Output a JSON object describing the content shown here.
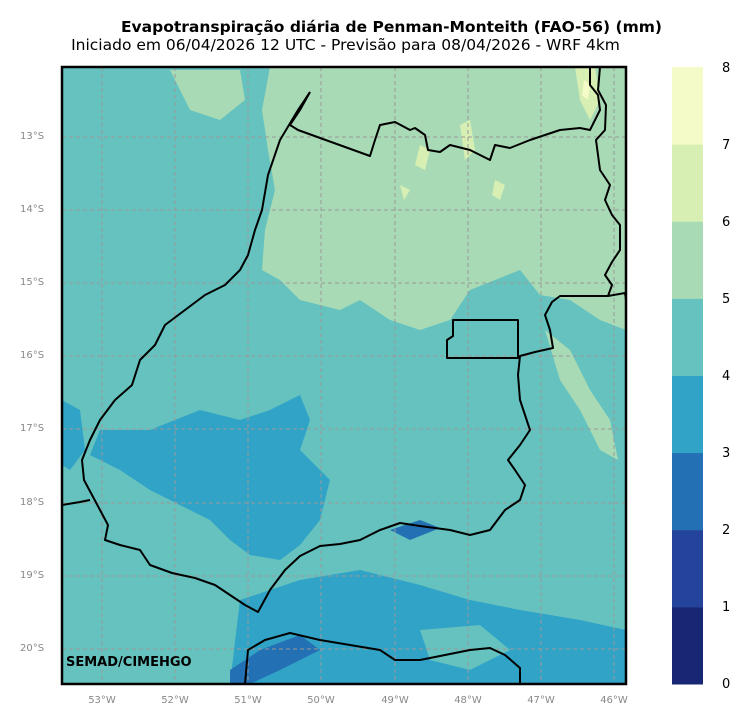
{
  "title": "Evapotranspiração diária de Penman-Monteith (FAO-56) (mm)",
  "subtitle": "Iniciado em 06/04/2026 12 UTC - Previsão para 08/04/2026 - WRF 4km",
  "credit": "SEMAD/CIMEHGO",
  "lat_labels": [
    "13°S",
    "14°S",
    "15°S",
    "16°S",
    "17°S",
    "18°S",
    "19°S",
    "20°S"
  ],
  "lon_labels": [
    "53°W",
    "52°W",
    "51°W",
    "50°W",
    "49°W",
    "48°W",
    "47°W",
    "46°W"
  ],
  "colorbar": {
    "ticks": [
      "0",
      "1",
      "2",
      "3",
      "4",
      "5",
      "6",
      "7",
      "8"
    ],
    "colors": [
      "#172774",
      "#24449b",
      "#2370b4",
      "#30a3c6",
      "#65c2bf",
      "#a8dbb5",
      "#d7efb3",
      "#f5fbc8"
    ]
  },
  "palette": {
    "base": "#65c2bf",
    "low": "#30a3c6",
    "lower": "#2370b4",
    "high": "#a8dbb5",
    "higher": "#d7efb3",
    "highest": "#f5fbc8",
    "grid": "#999999",
    "border": "#000000"
  }
}
